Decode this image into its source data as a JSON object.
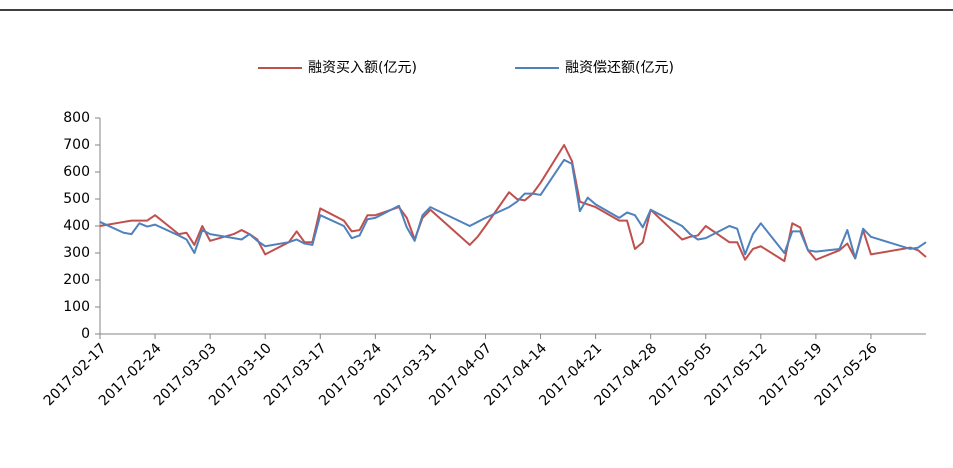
{
  "chart_data": {
    "type": "line",
    "x": [
      "2017-02-17",
      "2017-02-20",
      "2017-02-21",
      "2017-02-22",
      "2017-02-23",
      "2017-02-24",
      "2017-02-27",
      "2017-02-28",
      "2017-03-01",
      "2017-03-02",
      "2017-03-03",
      "2017-03-06",
      "2017-03-07",
      "2017-03-08",
      "2017-03-09",
      "2017-03-10",
      "2017-03-13",
      "2017-03-14",
      "2017-03-15",
      "2017-03-16",
      "2017-03-17",
      "2017-03-20",
      "2017-03-21",
      "2017-03-22",
      "2017-03-23",
      "2017-03-24",
      "2017-03-27",
      "2017-03-28",
      "2017-03-29",
      "2017-03-30",
      "2017-03-31",
      "2017-04-05",
      "2017-04-06",
      "2017-04-07",
      "2017-04-10",
      "2017-04-11",
      "2017-04-12",
      "2017-04-13",
      "2017-04-14",
      "2017-04-17",
      "2017-04-18",
      "2017-04-19",
      "2017-04-20",
      "2017-04-21",
      "2017-04-24",
      "2017-04-25",
      "2017-04-26",
      "2017-04-27",
      "2017-04-28",
      "2017-05-02",
      "2017-05-03",
      "2017-05-04",
      "2017-05-05",
      "2017-05-08",
      "2017-05-09",
      "2017-05-10",
      "2017-05-11",
      "2017-05-12",
      "2017-05-15",
      "2017-05-16",
      "2017-05-17",
      "2017-05-18",
      "2017-05-19",
      "2017-05-22",
      "2017-05-23",
      "2017-05-24",
      "2017-05-25",
      "2017-05-26",
      "2017-05-31",
      "2017-06-01",
      "2017-06-02"
    ],
    "series": [
      {
        "name": "融资买入额(亿元)",
        "color": "#c0504d",
        "values": [
          400,
          415,
          420,
          420,
          420,
          440,
          370,
          375,
          330,
          400,
          345,
          370,
          385,
          370,
          350,
          295,
          340,
          380,
          340,
          340,
          465,
          420,
          380,
          385,
          440,
          440,
          470,
          430,
          350,
          430,
          460,
          330,
          360,
          400,
          525,
          500,
          495,
          520,
          560,
          700,
          640,
          490,
          480,
          470,
          420,
          420,
          315,
          340,
          460,
          350,
          360,
          365,
          400,
          340,
          340,
          275,
          315,
          325,
          270,
          410,
          395,
          310,
          275,
          310,
          335,
          280,
          385,
          295,
          320,
          310,
          285
        ]
      },
      {
        "name": "融资偿还额(亿元)",
        "color": "#4f81bd",
        "values": [
          415,
          375,
          370,
          410,
          398,
          405,
          365,
          350,
          300,
          385,
          370,
          355,
          350,
          370,
          345,
          325,
          340,
          350,
          335,
          330,
          440,
          400,
          355,
          365,
          425,
          430,
          475,
          395,
          345,
          440,
          470,
          400,
          415,
          430,
          470,
          490,
          520,
          520,
          515,
          645,
          630,
          455,
          505,
          480,
          430,
          450,
          440,
          395,
          460,
          400,
          370,
          350,
          355,
          400,
          390,
          295,
          370,
          410,
          300,
          380,
          380,
          310,
          305,
          315,
          385,
          280,
          390,
          360,
          315,
          320,
          340
        ]
      }
    ],
    "xlim": [
      "2017-02-17",
      "2017-06-02"
    ],
    "xticks": [
      "2017-02-17",
      "2017-02-24",
      "2017-03-03",
      "2017-03-10",
      "2017-03-17",
      "2017-03-24",
      "2017-03-31",
      "2017-04-07",
      "2017-04-14",
      "2017-04-21",
      "2017-04-28",
      "2017-05-05",
      "2017-05-12",
      "2017-05-19",
      "2017-05-26"
    ],
    "ylim": [
      0,
      800
    ],
    "yticks": [
      0,
      100,
      200,
      300,
      400,
      500,
      600,
      700,
      800
    ],
    "legend": "top"
  }
}
